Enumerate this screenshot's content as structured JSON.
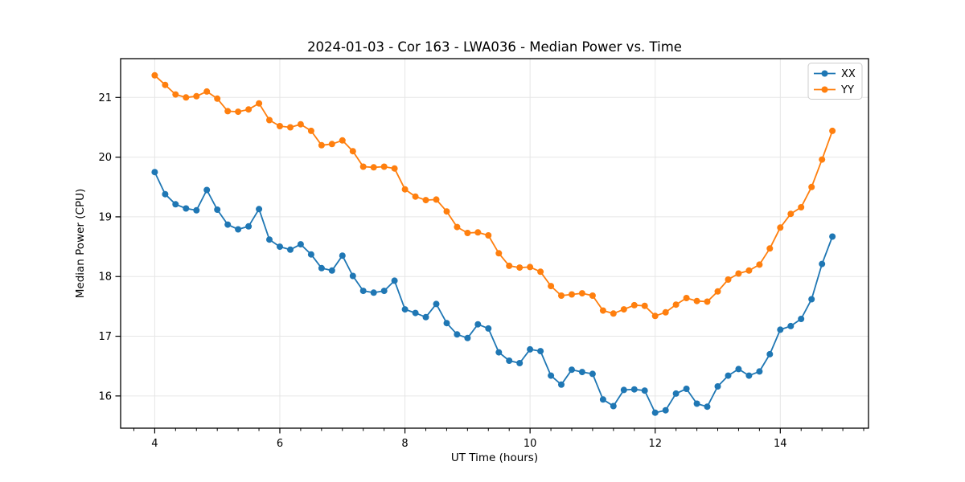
{
  "figure": {
    "title": "2024-01-03 - Cor 163 - LWA036 - Median Power vs. Time",
    "xlabel": "UT Time (hours)",
    "ylabel": "Median Power (CPU)"
  },
  "chart_data": {
    "type": "line",
    "title": "2024-01-03 - Cor 163 - LWA036 - Median Power vs. Time",
    "xlabel": "UT Time (hours)",
    "ylabel": "Median Power (CPU)",
    "xlim": [
      3.455,
      15.41
    ],
    "ylim": [
      15.46,
      21.65
    ],
    "x_major_ticks": [
      4,
      6,
      8,
      10,
      12,
      14
    ],
    "x_minor_tick_step": 0.33333,
    "y_major_ticks": [
      16,
      17,
      18,
      19,
      20,
      21
    ],
    "grid": true,
    "grid_color": "#e6e6e6",
    "legend_position": "upper right",
    "background": "#ffffff",
    "x": [
      4.0,
      4.167,
      4.333,
      4.5,
      4.667,
      4.833,
      5.0,
      5.167,
      5.333,
      5.5,
      5.667,
      5.833,
      6.0,
      6.167,
      6.333,
      6.5,
      6.667,
      6.833,
      7.0,
      7.167,
      7.333,
      7.5,
      7.667,
      7.833,
      8.0,
      8.167,
      8.333,
      8.5,
      8.667,
      8.833,
      9.0,
      9.167,
      9.333,
      9.5,
      9.667,
      9.833,
      10.0,
      10.167,
      10.333,
      10.5,
      10.667,
      10.833,
      11.0,
      11.167,
      11.333,
      11.5,
      11.667,
      11.833,
      12.0,
      12.167,
      12.333,
      12.5,
      12.667,
      12.833,
      13.0,
      13.167,
      13.333,
      13.5,
      13.667,
      13.833,
      14.0,
      14.167,
      14.333,
      14.5,
      14.667,
      14.833
    ],
    "series": [
      {
        "name": "XX",
        "color": "#1f77b4",
        "values": [
          19.75,
          19.38,
          19.21,
          19.14,
          19.11,
          19.45,
          19.12,
          18.87,
          18.79,
          18.84,
          19.13,
          18.62,
          18.5,
          18.45,
          18.54,
          18.37,
          18.14,
          18.1,
          18.35,
          18.01,
          17.76,
          17.73,
          17.76,
          17.93,
          17.45,
          17.39,
          17.32,
          17.54,
          17.22,
          17.03,
          16.97,
          17.2,
          17.13,
          16.73,
          16.59,
          16.55,
          16.78,
          16.75,
          16.34,
          16.19,
          16.44,
          16.4,
          16.37,
          15.94,
          15.83,
          16.1,
          16.11,
          16.09,
          15.72,
          15.76,
          16.04,
          16.12,
          15.87,
          15.82,
          16.16,
          16.34,
          16.45,
          16.34,
          16.41,
          16.7,
          17.11,
          17.17,
          17.29,
          17.62,
          18.21,
          18.67
        ]
      },
      {
        "name": "YY",
        "color": "#ff7f0e",
        "values": [
          21.37,
          21.21,
          21.05,
          21.0,
          21.02,
          21.1,
          20.98,
          20.77,
          20.76,
          20.8,
          20.9,
          20.62,
          20.52,
          20.5,
          20.55,
          20.44,
          20.2,
          20.22,
          20.28,
          20.1,
          19.84,
          19.83,
          19.84,
          19.81,
          19.46,
          19.34,
          19.28,
          19.29,
          19.09,
          18.83,
          18.73,
          18.74,
          18.69,
          18.39,
          18.18,
          18.15,
          18.16,
          18.08,
          17.84,
          17.68,
          17.7,
          17.72,
          17.68,
          17.43,
          17.38,
          17.45,
          17.52,
          17.51,
          17.34,
          17.4,
          17.53,
          17.64,
          17.59,
          17.58,
          17.75,
          17.95,
          18.05,
          18.1,
          18.2,
          18.47,
          18.82,
          19.05,
          19.16,
          19.5,
          19.96,
          20.44
        ]
      }
    ]
  }
}
